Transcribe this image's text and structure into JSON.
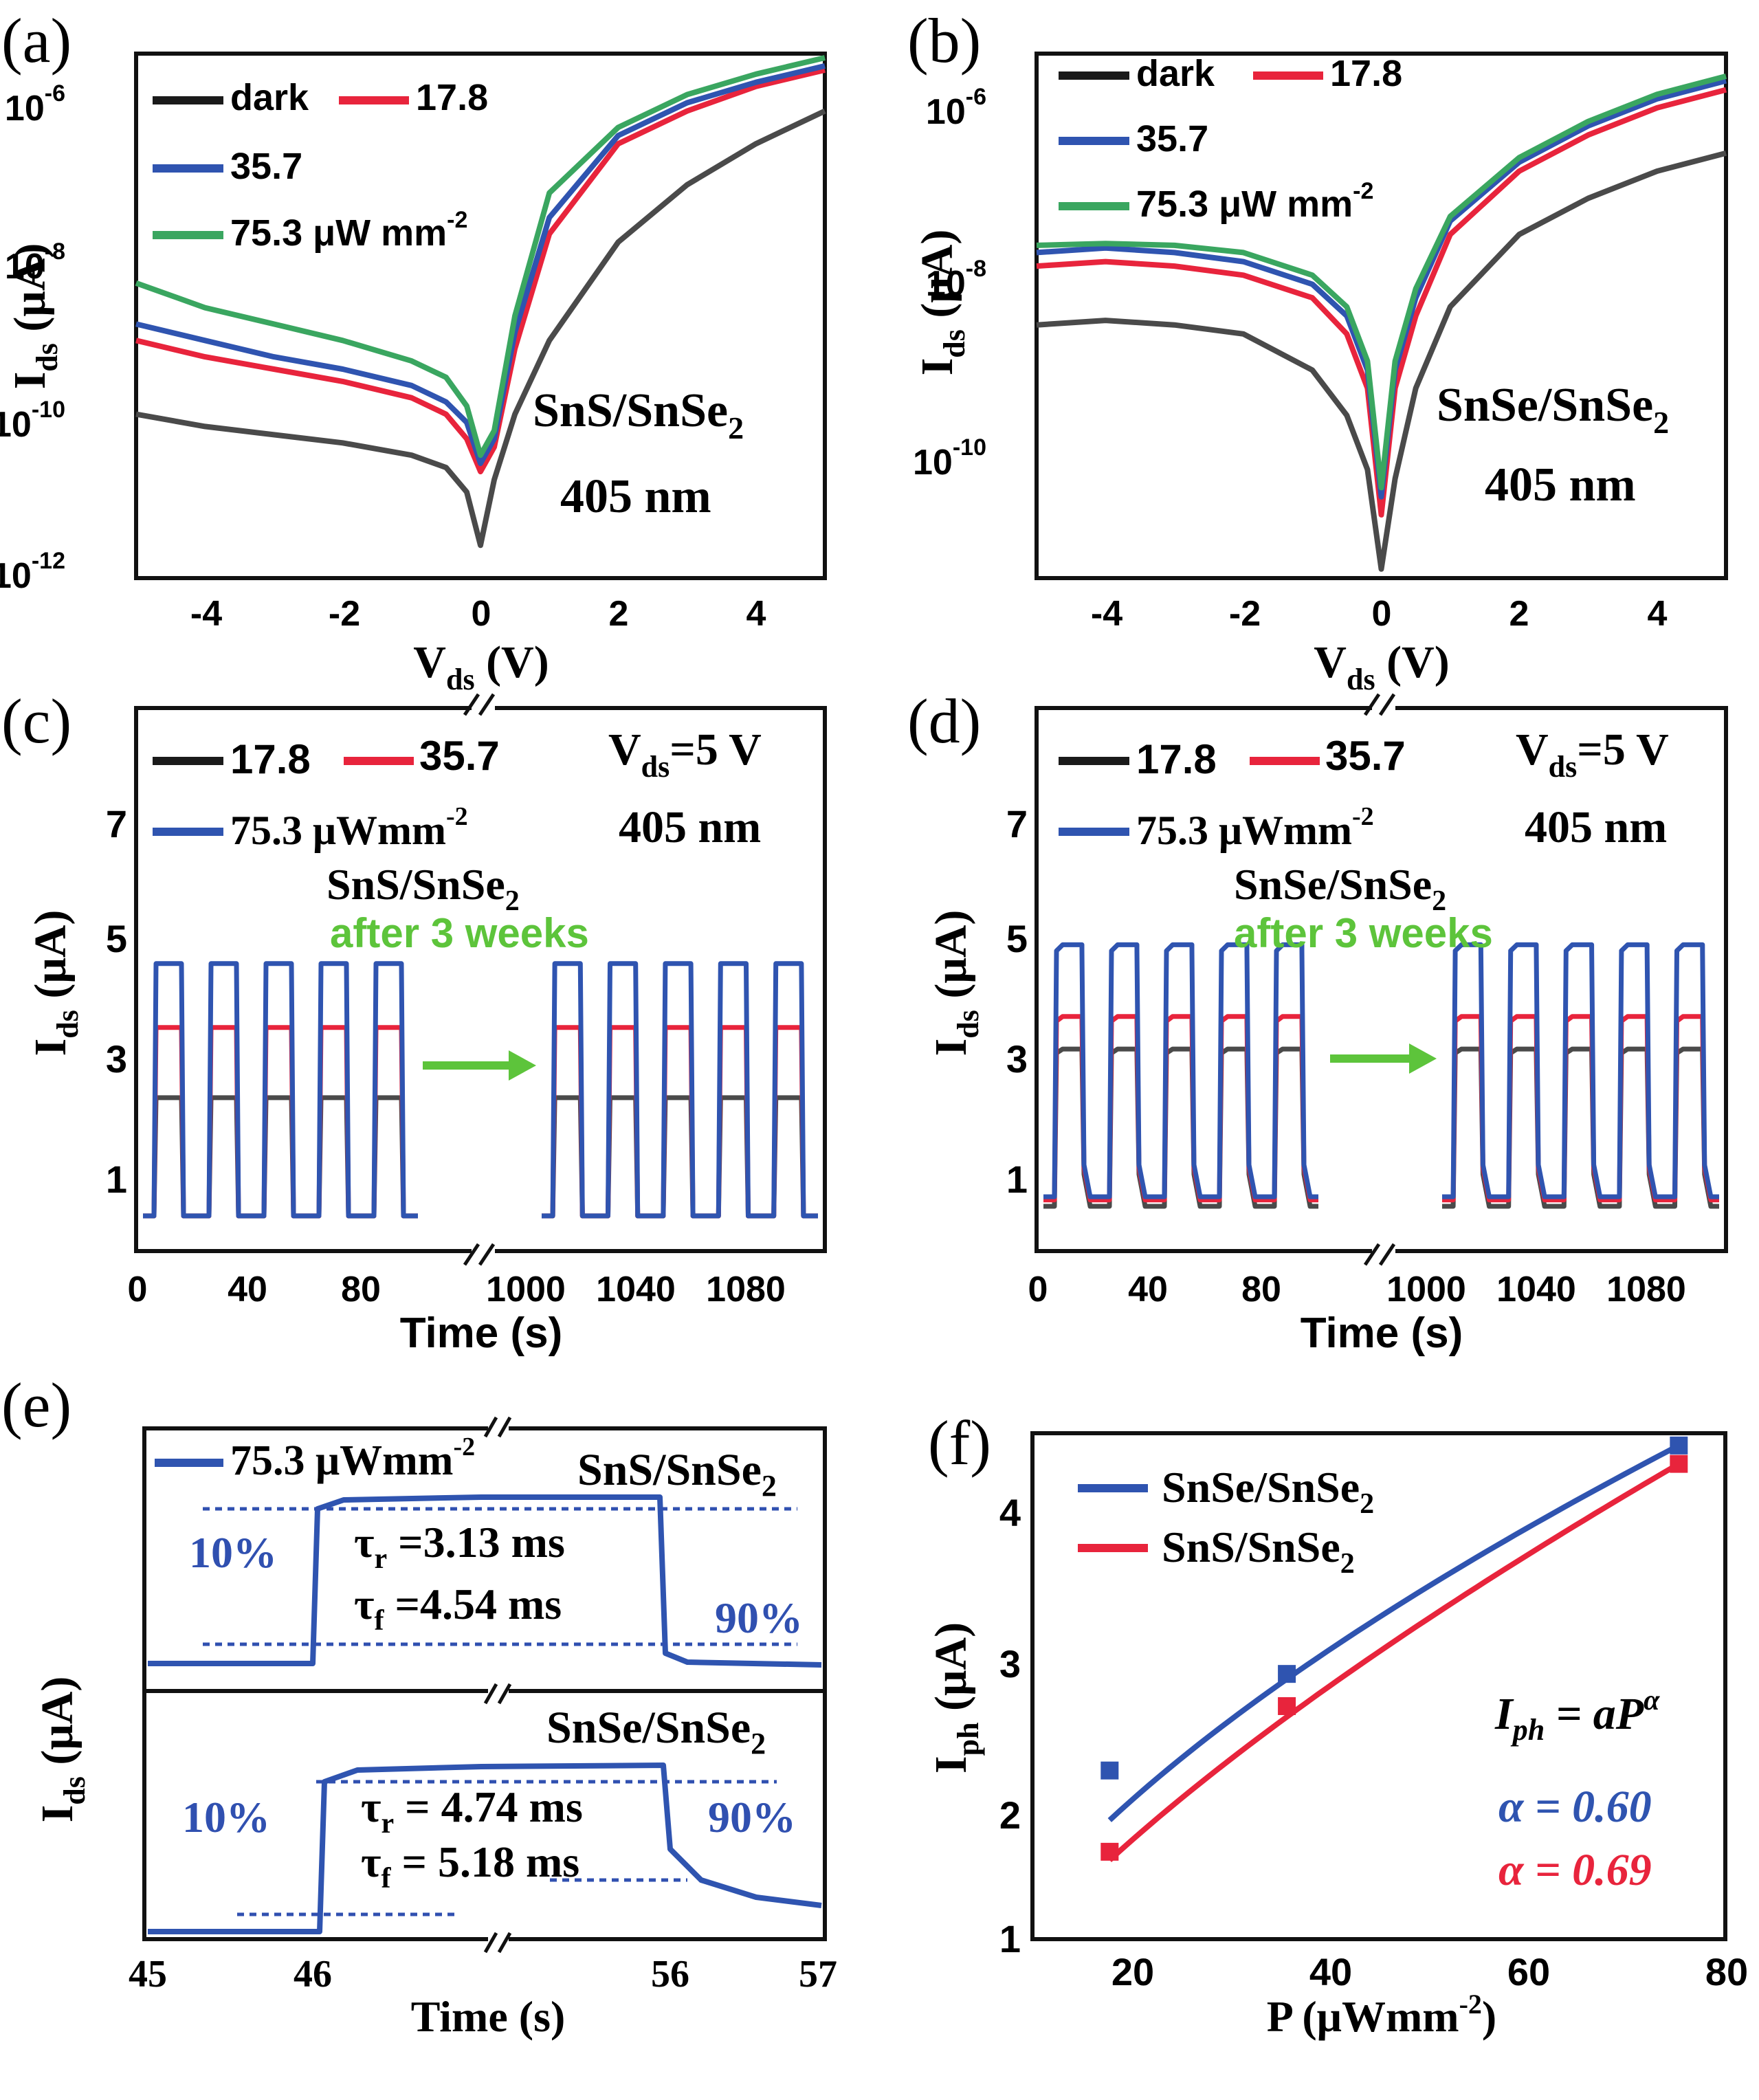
{
  "colors": {
    "black": "#1a1a1a",
    "red": "#e8243c",
    "blue": "#2f54b0",
    "green": "#3aa660",
    "gray": "#4a4a4a",
    "arrow": "#5dc43b",
    "dotted": "#3050b0"
  },
  "panels": {
    "a": {
      "letter": "(a)",
      "label1": "SnS/SnSe",
      "label1_sub": "2",
      "label2": "405 nm",
      "legend": [
        "dark",
        "17.8",
        "35.7",
        "75.3 μW mm"
      ],
      "legend_sup": "-2",
      "y_ticks": [
        "10",
        "10",
        "10",
        "10"
      ],
      "y_tick_sups": [
        "-6",
        "-8",
        "-10",
        "-12"
      ],
      "x_ticks": [
        "-4",
        "-2",
        "0",
        "2",
        "4"
      ],
      "ylabel": "I",
      "ylabel_sub": "ds",
      "ylabel_unit": " (μA)",
      "xlabel": "V",
      "xlabel_sub": "ds",
      "xlabel_unit": " (V)"
    },
    "b": {
      "letter": "(b)",
      "label1": "SnSe/SnSe",
      "label1_sub": "2",
      "label2": "405 nm",
      "legend": [
        "dark",
        "17.8",
        "35.7",
        "75.3 μW mm"
      ],
      "legend_sup": "-2",
      "y_ticks": [
        "10",
        "10",
        "10"
      ],
      "y_tick_sups": [
        "-6",
        "-8",
        "-10"
      ],
      "x_ticks": [
        "-4",
        "-2",
        "0",
        "2",
        "4"
      ],
      "ylabel": "I",
      "ylabel_sub": "ds",
      "ylabel_unit": " (μA)",
      "xlabel": "V",
      "xlabel_sub": "ds",
      "xlabel_unit": " (V)"
    },
    "c": {
      "letter": "(c)",
      "legend": [
        "17.8",
        "35.7",
        "75.3 μWmm"
      ],
      "legend_sup": "-2",
      "vds": "V",
      "vds_sub": "ds",
      "vds_val": "=5 V",
      "wl": "405 nm",
      "device": "SnS/SnSe",
      "device_sub": "2",
      "note": "after 3 weeks",
      "y_ticks": [
        "7",
        "5",
        "3",
        "1"
      ],
      "x_ticks": [
        "0",
        "40",
        "80",
        "1000",
        "1040",
        "1080"
      ],
      "ylabel": "I",
      "ylabel_sub": "ds",
      "ylabel_unit": " (μA)",
      "xlabel": "Time (s)"
    },
    "d": {
      "letter": "(d)",
      "legend": [
        "17.8",
        "35.7",
        "75.3 μWmm"
      ],
      "legend_sup": "-2",
      "vds": "V",
      "vds_sub": "ds",
      "vds_val": "=5 V",
      "wl": "405 nm",
      "device": "SnSe/SnSe",
      "device_sub": "2",
      "note": "after 3 weeks",
      "y_ticks": [
        "7",
        "5",
        "3",
        "1"
      ],
      "x_ticks": [
        "0",
        "40",
        "80",
        "1000",
        "1040",
        "1080"
      ],
      "ylabel": "I",
      "ylabel_sub": "ds",
      "ylabel_unit": " (μA)",
      "xlabel": "Time (s)"
    },
    "e": {
      "letter": "(e)",
      "legend": "75.3 μWmm",
      "legend_sup": "-2",
      "top_device": "SnS/SnSe",
      "top_device_sub": "2",
      "top_tr": "τ",
      "top_tr_sub": "r",
      "top_tr_val": " =3.13 ms",
      "top_tf": "τ",
      "top_tf_sub": "f",
      "top_tf_val": " =4.54 ms",
      "bot_device": "SnSe/SnSe",
      "bot_device_sub": "2",
      "bot_tr": "τ",
      "bot_tr_sub": "r",
      "bot_tr_val": " = 4.74 ms",
      "bot_tf": "τ",
      "bot_tf_sub": "f",
      "bot_tf_val": " = 5.18 ms",
      "pct10": "10%",
      "pct90": "90%",
      "x_ticks": [
        "45",
        "46",
        "56",
        "57"
      ],
      "ylabel": "I",
      "ylabel_sub": "ds",
      "ylabel_unit": " (μA)",
      "xlabel": "Time (s)"
    },
    "f": {
      "letter": "(f)",
      "legend": [
        {
          "device": "SnSe/SnSe",
          "sub": "2"
        },
        {
          "device": "SnS/SnSe",
          "sub": "2"
        }
      ],
      "formula_I": "I",
      "formula_sub": "ph",
      "formula_rest": " = aP",
      "formula_sup": "α",
      "alpha_blue": "α = 0.60",
      "alpha_red": "α = 0.69",
      "y_ticks": [
        "4",
        "3",
        "2",
        "1"
      ],
      "x_ticks": [
        "20",
        "40",
        "60",
        "80"
      ],
      "ylabel": "I",
      "ylabel_sub": "ph",
      "ylabel_unit": " (μA)",
      "xlabel": "P (μWmm",
      "xlabel_sup": "-2",
      "xlabel_end": ")"
    }
  },
  "chart_data": [
    {
      "panel": "a",
      "type": "line",
      "x": [
        -5,
        -4,
        -3,
        -2,
        -1,
        -0.5,
        -0.2,
        0,
        0.2,
        0.5,
        1,
        2,
        3,
        4,
        5
      ],
      "ylim_log10": [
        -12,
        -5.6
      ],
      "yscale": "log",
      "series": [
        {
          "name": "dark",
          "color": "black",
          "values_log10": [
            -10,
            -10.15,
            -10.25,
            -10.35,
            -10.5,
            -10.65,
            -10.95,
            -11.6,
            -10.8,
            -10.0,
            -9.1,
            -7.9,
            -7.2,
            -6.7,
            -6.3
          ]
        },
        {
          "name": "17.8",
          "color": "red",
          "values_log10": [
            -9.1,
            -9.3,
            -9.45,
            -9.6,
            -9.8,
            -10.0,
            -10.3,
            -10.7,
            -10.4,
            -9.2,
            -7.8,
            -6.7,
            -6.3,
            -6.0,
            -5.8
          ]
        },
        {
          "name": "35.7",
          "color": "blue",
          "values_log10": [
            -8.9,
            -9.1,
            -9.3,
            -9.45,
            -9.65,
            -9.85,
            -10.1,
            -10.6,
            -10.3,
            -9.0,
            -7.6,
            -6.6,
            -6.2,
            -5.95,
            -5.75
          ]
        },
        {
          "name": "75.3 μW mm-2",
          "color": "green",
          "values_log10": [
            -8.4,
            -8.7,
            -8.9,
            -9.1,
            -9.35,
            -9.55,
            -9.9,
            -10.5,
            -10.2,
            -8.8,
            -7.3,
            -6.5,
            -6.1,
            -5.85,
            -5.65
          ]
        }
      ]
    },
    {
      "panel": "b",
      "type": "line",
      "x": [
        -5,
        -4,
        -3,
        -2,
        -1,
        -0.5,
        -0.2,
        0,
        0.2,
        0.5,
        1,
        2,
        3,
        4,
        5
      ],
      "ylim_log10": [
        -11.4,
        -5.6
      ],
      "yscale": "log",
      "series": [
        {
          "name": "dark",
          "color": "black",
          "values_log10": [
            -8.6,
            -8.55,
            -8.6,
            -8.7,
            -9.1,
            -9.6,
            -10.2,
            -11.3,
            -10.3,
            -9.3,
            -8.4,
            -7.6,
            -7.2,
            -6.9,
            -6.7
          ]
        },
        {
          "name": "17.8",
          "color": "red",
          "values_log10": [
            -7.95,
            -7.9,
            -7.95,
            -8.05,
            -8.3,
            -8.7,
            -9.3,
            -10.7,
            -9.3,
            -8.5,
            -7.6,
            -6.9,
            -6.5,
            -6.2,
            -6.0
          ]
        },
        {
          "name": "35.7",
          "color": "blue",
          "values_log10": [
            -7.8,
            -7.75,
            -7.8,
            -7.9,
            -8.15,
            -8.5,
            -9.1,
            -10.5,
            -9.1,
            -8.3,
            -7.45,
            -6.8,
            -6.4,
            -6.1,
            -5.9
          ]
        },
        {
          "name": "75.3 μW mm-2",
          "color": "green",
          "values_log10": [
            -7.72,
            -7.7,
            -7.72,
            -7.8,
            -8.05,
            -8.4,
            -9.0,
            -10.4,
            -9.0,
            -8.2,
            -7.4,
            -6.75,
            -6.35,
            -6.05,
            -5.85
          ]
        }
      ]
    },
    {
      "panel": "c",
      "type": "line",
      "ylim": [
        0,
        8.5
      ],
      "cycles_per_segment": 5,
      "segments": [
        {
          "x_start": 0,
          "x_end": 95
        },
        {
          "x_start": 990,
          "x_end": 1100
        }
      ],
      "series": [
        {
          "name": "17.8",
          "color": "black",
          "on": 2.4,
          "off": 0.55
        },
        {
          "name": "35.7",
          "color": "red",
          "on": 3.5,
          "off": 0.55
        },
        {
          "name": "75.3 μWmm-2",
          "color": "blue",
          "on": 4.5,
          "off": 0.55
        }
      ]
    },
    {
      "panel": "d",
      "type": "line",
      "ylim": [
        0,
        8.5
      ],
      "cycles_per_segment": 5,
      "segments": [
        {
          "x_start": 0,
          "x_end": 95
        },
        {
          "x_start": 990,
          "x_end": 1100
        }
      ],
      "series": [
        {
          "name": "17.8",
          "color": "black",
          "on": 3.1,
          "off": 0.7
        },
        {
          "name": "35.7",
          "color": "red",
          "on": 3.6,
          "off": 0.8
        },
        {
          "name": "75.3 μWmm-2",
          "color": "blue",
          "on": 4.7,
          "off": 0.85
        }
      ]
    },
    {
      "panel": "e",
      "type": "line",
      "x_ticks": [
        45,
        46,
        56,
        57
      ],
      "series": [
        {
          "name": "75.3 μWmm-2",
          "color": "blue"
        }
      ]
    },
    {
      "panel": "f",
      "type": "scatter",
      "xlim": [
        10,
        80
      ],
      "ylim": [
        1,
        4.3
      ],
      "series": [
        {
          "name": "SnSe/SnSe2",
          "color": "blue",
          "x": [
            17.8,
            35.7,
            75.3
          ],
          "y": [
            2.1,
            2.73,
            4.22
          ],
          "fit_alpha": 0.6
        },
        {
          "name": "SnS/SnSe2",
          "color": "red",
          "x": [
            17.8,
            35.7,
            75.3
          ],
          "y": [
            1.57,
            2.52,
            4.1
          ],
          "fit_alpha": 0.69
        }
      ]
    }
  ]
}
